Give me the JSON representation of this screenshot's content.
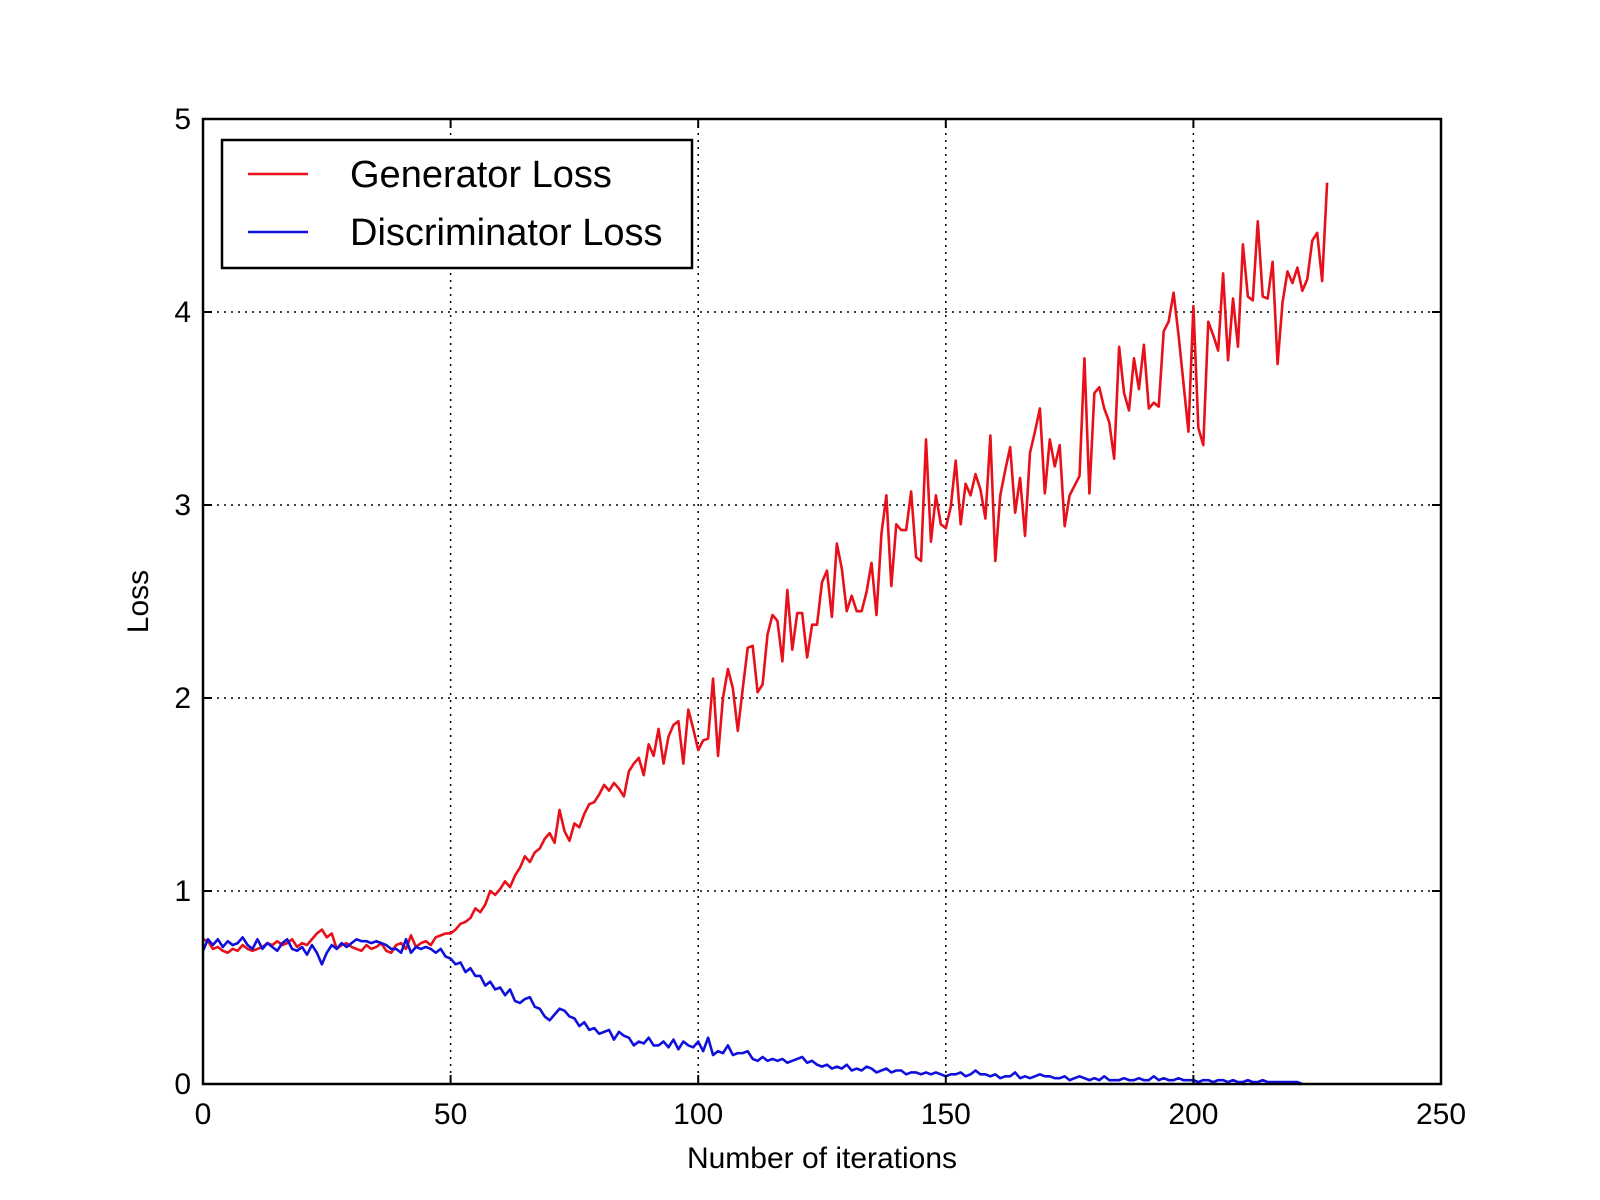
{
  "chart_data": {
    "type": "line",
    "title": "",
    "xlabel": "Number of iterations",
    "ylabel": "Loss",
    "xlim": [
      0,
      250
    ],
    "ylim": [
      0,
      5
    ],
    "xticks": [
      0,
      50,
      100,
      150,
      200,
      250
    ],
    "yticks": [
      0,
      1,
      2,
      3,
      4,
      5
    ],
    "xtick_labels": [
      "0",
      "50",
      "100",
      "150",
      "200",
      "250"
    ],
    "ytick_labels": [
      "0",
      "1",
      "2",
      "3",
      "4",
      "5"
    ],
    "grid": true,
    "legend_position": "top-left",
    "series": [
      {
        "name": "Generator Loss",
        "color": "#e8101a",
        "values": [
          0.75,
          0.74,
          0.7,
          0.71,
          0.69,
          0.68,
          0.7,
          0.69,
          0.72,
          0.7,
          0.69,
          0.7,
          0.71,
          0.73,
          0.72,
          0.74,
          0.72,
          0.73,
          0.75,
          0.71,
          0.73,
          0.72,
          0.75,
          0.78,
          0.8,
          0.76,
          0.78,
          0.7,
          0.72,
          0.73,
          0.71,
          0.7,
          0.69,
          0.72,
          0.7,
          0.71,
          0.73,
          0.69,
          0.68,
          0.72,
          0.73,
          0.7,
          0.77,
          0.71,
          0.73,
          0.74,
          0.72,
          0.76,
          0.77,
          0.78,
          0.78,
          0.8,
          0.83,
          0.84,
          0.86,
          0.91,
          0.89,
          0.93,
          1.0,
          0.98,
          1.01,
          1.05,
          1.02,
          1.08,
          1.12,
          1.18,
          1.15,
          1.2,
          1.22,
          1.27,
          1.3,
          1.25,
          1.42,
          1.31,
          1.26,
          1.35,
          1.33,
          1.4,
          1.45,
          1.46,
          1.5,
          1.55,
          1.52,
          1.56,
          1.53,
          1.49,
          1.62,
          1.66,
          1.69,
          1.6,
          1.76,
          1.7,
          1.84,
          1.66,
          1.8,
          1.86,
          1.88,
          1.66,
          1.94,
          1.84,
          1.73,
          1.78,
          1.79,
          2.1,
          1.7,
          2.0,
          2.15,
          2.05,
          1.83,
          2.05,
          2.26,
          2.27,
          2.03,
          2.07,
          2.33,
          2.43,
          2.4,
          2.19,
          2.56,
          2.25,
          2.44,
          2.44,
          2.21,
          2.38,
          2.38,
          2.6,
          2.66,
          2.42,
          2.8,
          2.67,
          2.45,
          2.53,
          2.45,
          2.45,
          2.55,
          2.7,
          2.43,
          2.85,
          3.05,
          2.58,
          2.9,
          2.87,
          2.87,
          3.07,
          2.73,
          2.71,
          3.34,
          2.81,
          3.05,
          2.9,
          2.88,
          2.99,
          3.23,
          2.9,
          3.11,
          3.05,
          3.16,
          3.08,
          2.93,
          3.36,
          2.71,
          3.05,
          3.18,
          3.3,
          2.96,
          3.14,
          2.84,
          3.27,
          3.38,
          3.5,
          3.06,
          3.34,
          3.2,
          3.31,
          2.89,
          3.05,
          3.1,
          3.15,
          3.76,
          3.06,
          3.58,
          3.61,
          3.5,
          3.43,
          3.24,
          3.82,
          3.58,
          3.49,
          3.76,
          3.6,
          3.83,
          3.5,
          3.53,
          3.51,
          3.9,
          3.95,
          4.1,
          3.88,
          3.63,
          3.38,
          4.03,
          3.4,
          3.31,
          3.95,
          3.88,
          3.8,
          4.2,
          3.75,
          4.07,
          3.82,
          4.35,
          4.08,
          4.06,
          4.47,
          4.08,
          4.07,
          4.26,
          3.73,
          4.05,
          4.21,
          4.15,
          4.23,
          4.11,
          4.17,
          4.37,
          4.41,
          4.16,
          4.67
        ]
      },
      {
        "name": "Discriminator Loss",
        "color": "#1010dd",
        "values": [
          0.69,
          0.75,
          0.72,
          0.75,
          0.71,
          0.74,
          0.72,
          0.73,
          0.76,
          0.72,
          0.7,
          0.75,
          0.7,
          0.73,
          0.71,
          0.69,
          0.73,
          0.75,
          0.7,
          0.69,
          0.71,
          0.67,
          0.72,
          0.68,
          0.62,
          0.68,
          0.72,
          0.7,
          0.73,
          0.71,
          0.73,
          0.75,
          0.74,
          0.74,
          0.73,
          0.74,
          0.73,
          0.72,
          0.7,
          0.7,
          0.68,
          0.75,
          0.68,
          0.71,
          0.7,
          0.71,
          0.7,
          0.68,
          0.7,
          0.66,
          0.65,
          0.62,
          0.63,
          0.58,
          0.6,
          0.56,
          0.56,
          0.51,
          0.53,
          0.49,
          0.5,
          0.46,
          0.49,
          0.43,
          0.42,
          0.44,
          0.45,
          0.4,
          0.39,
          0.35,
          0.33,
          0.36,
          0.39,
          0.38,
          0.35,
          0.34,
          0.3,
          0.32,
          0.28,
          0.29,
          0.26,
          0.27,
          0.28,
          0.23,
          0.27,
          0.25,
          0.24,
          0.2,
          0.22,
          0.21,
          0.24,
          0.2,
          0.2,
          0.22,
          0.19,
          0.23,
          0.18,
          0.22,
          0.2,
          0.19,
          0.22,
          0.17,
          0.24,
          0.15,
          0.17,
          0.16,
          0.2,
          0.15,
          0.16,
          0.16,
          0.17,
          0.13,
          0.12,
          0.14,
          0.12,
          0.13,
          0.12,
          0.13,
          0.11,
          0.12,
          0.13,
          0.14,
          0.11,
          0.12,
          0.1,
          0.09,
          0.1,
          0.08,
          0.09,
          0.08,
          0.1,
          0.07,
          0.08,
          0.07,
          0.09,
          0.08,
          0.06,
          0.07,
          0.08,
          0.06,
          0.07,
          0.07,
          0.05,
          0.06,
          0.06,
          0.05,
          0.06,
          0.05,
          0.06,
          0.05,
          0.04,
          0.05,
          0.05,
          0.06,
          0.04,
          0.05,
          0.07,
          0.05,
          0.05,
          0.04,
          0.05,
          0.03,
          0.04,
          0.04,
          0.06,
          0.03,
          0.04,
          0.03,
          0.04,
          0.05,
          0.04,
          0.04,
          0.03,
          0.03,
          0.04,
          0.02,
          0.03,
          0.04,
          0.03,
          0.02,
          0.03,
          0.02,
          0.04,
          0.02,
          0.02,
          0.02,
          0.03,
          0.02,
          0.02,
          0.03,
          0.02,
          0.02,
          0.04,
          0.02,
          0.03,
          0.02,
          0.02,
          0.03,
          0.02,
          0.02,
          0.02,
          0.01,
          0.02,
          0.02,
          0.01,
          0.02,
          0.02,
          0.01,
          0.02,
          0.01,
          0.01,
          0.02,
          0.01,
          0.01,
          0.02,
          0.01,
          0.01,
          0.01,
          0.01,
          0.01,
          0.01,
          0.01,
          0.0
        ]
      }
    ]
  }
}
